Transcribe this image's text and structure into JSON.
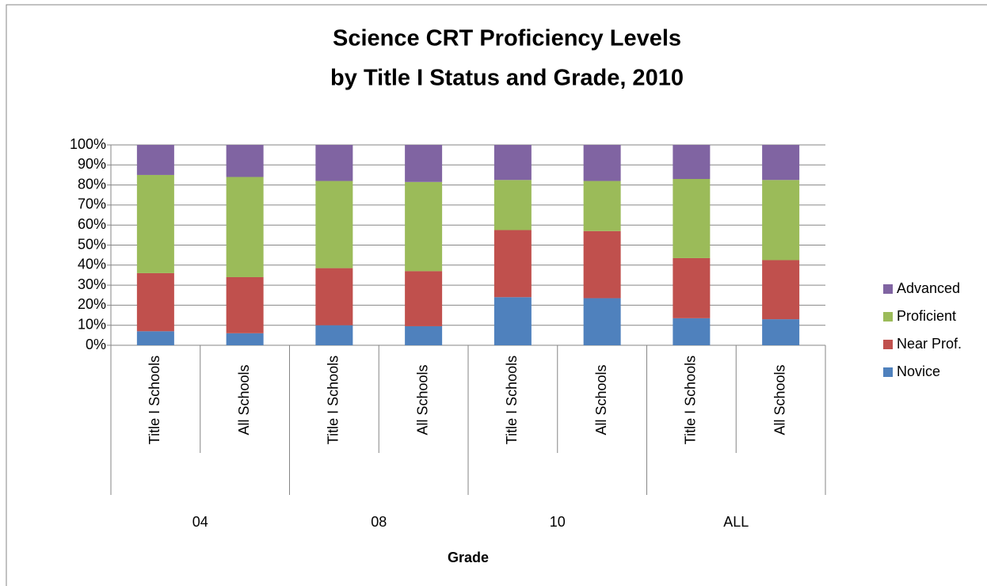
{
  "chart_data": {
    "type": "stacked_bar",
    "title": [
      "Science CRT Proficiency Levels",
      "by Title I Status and Grade, 2010"
    ],
    "x_label": "Grade",
    "category_groups": [
      {
        "label": "04",
        "categories": [
          "Title I Schools",
          "All Schools"
        ]
      },
      {
        "label": "08",
        "categories": [
          "Title I Schools",
          "All Schools"
        ]
      },
      {
        "label": "10",
        "categories": [
          "Title I Schools",
          "All Schools"
        ]
      },
      {
        "label": "ALL",
        "categories": [
          "Title I Schools",
          "All Schools"
        ]
      }
    ],
    "series": [
      {
        "name": "Novice",
        "color": "#4f81bd",
        "values": [
          7,
          6,
          10,
          9.5,
          24,
          23.5,
          13.5,
          13
        ]
      },
      {
        "name": "Near Prof.",
        "color": "#c0504d",
        "values": [
          29,
          28,
          28.5,
          27.5,
          33.5,
          33.5,
          30,
          29.5
        ]
      },
      {
        "name": "Proficient",
        "color": "#9bbb59",
        "values": [
          49,
          50,
          43.5,
          44.5,
          25,
          25,
          39.5,
          40
        ]
      },
      {
        "name": "Advanced",
        "color": "#8064a2",
        "values": [
          15,
          16,
          18,
          18.5,
          17.5,
          18,
          17,
          17.5
        ]
      }
    ],
    "ylim": [
      0,
      100
    ],
    "yticks": [
      {
        "value": 0,
        "label": "0%"
      },
      {
        "value": 10,
        "label": "10%"
      },
      {
        "value": 20,
        "label": "20%"
      },
      {
        "value": 30,
        "label": "30%"
      },
      {
        "value": 40,
        "label": "40%"
      },
      {
        "value": 50,
        "label": "50%"
      },
      {
        "value": 60,
        "label": "60%"
      },
      {
        "value": 70,
        "label": "70%"
      },
      {
        "value": 80,
        "label": "80%"
      },
      {
        "value": 90,
        "label": "90%"
      },
      {
        "value": 100,
        "label": "100%"
      }
    ],
    "grid": true,
    "legend": "right"
  }
}
